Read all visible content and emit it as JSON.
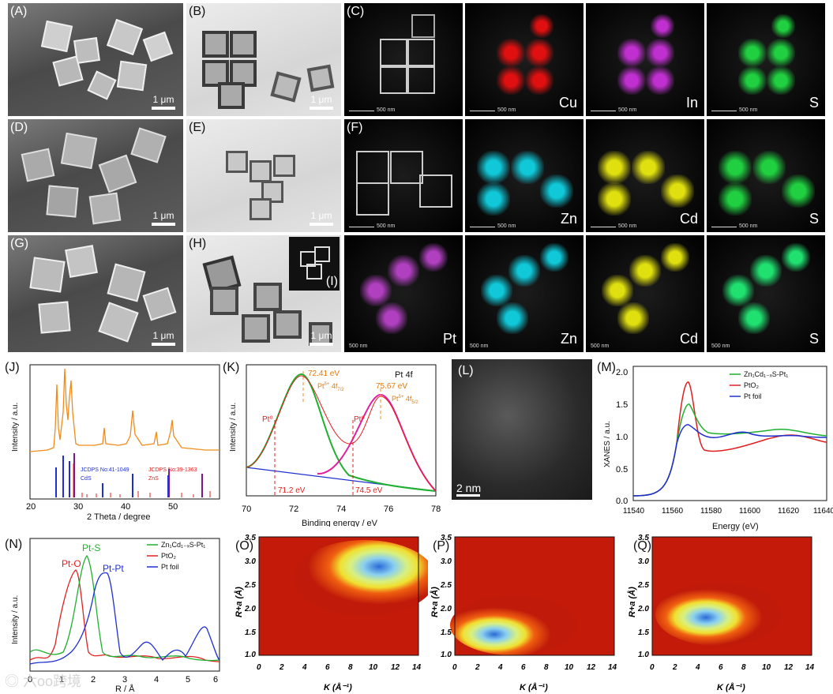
{
  "panels": {
    "A": {
      "label": "(A)",
      "scale": "1 μm"
    },
    "B": {
      "label": "(B)",
      "scale": "1 μm"
    },
    "C": {
      "label": "(C)",
      "scales": [
        "500 nm",
        "500 nm",
        "500 nm",
        "500 nm"
      ],
      "elements": [
        "Cu",
        "In",
        "S"
      ]
    },
    "D": {
      "label": "(D)",
      "scale": "1 μm"
    },
    "E": {
      "label": "(E)",
      "scale": "1 μm"
    },
    "F": {
      "label": "(F)",
      "scales": [
        "500 nm",
        "500 nm",
        "500 nm",
        "500 nm"
      ],
      "elements": [
        "Zn",
        "Cd",
        "S"
      ]
    },
    "G": {
      "label": "(G)",
      "scale": "1 μm"
    },
    "H": {
      "label": "(H)",
      "scale": "1 μm"
    },
    "I": {
      "label": "(I)"
    },
    "row3": {
      "scales": [
        "500 nm",
        "500 nm",
        "500 nm",
        "500 nm"
      ],
      "elements": [
        "Pt",
        "Zn",
        "Cd",
        "S"
      ]
    },
    "J": {
      "label": "(J)",
      "xlabel": "2 Theta / degree",
      "ylabel": "Intensity / a.u.",
      "ref1": "JCDPS No:41-1049",
      "ref1b": "CdS",
      "ref2": "JCDPS No:39-1363",
      "ref2b": "ZnS"
    },
    "K": {
      "label": "(K)",
      "xlabel": "Binding energy / eV",
      "ylabel": "Intensity / a.u.",
      "title": "Pt 4f",
      "e1": "72.41 eV",
      "e2": "75.67 eV",
      "e3": "71.2 eV",
      "e4": "74.5 eV",
      "pt0": "Pt⁰",
      "ptd1": "Pt",
      "ptd1sup": "δ+",
      "ptd1t": " 4f",
      "ptd1sub": "7/2",
      "ptd2sub": "5/2"
    },
    "L": {
      "label": "(L)",
      "scale": "2 nm"
    },
    "M": {
      "label": "(M)",
      "xlabel": "Energy (eV)",
      "ylabel": "XANES / a.u.",
      "legend": [
        "Zn₁Cd₁₋ₓS-Pt₁",
        "PtO₂",
        "Pt foil"
      ]
    },
    "N": {
      "label": "(N)",
      "xlabel": "R / Å",
      "ylabel": "Intensity / a.u.",
      "legend": [
        "Zn₁Cd₁₋ₓS-Pt₁",
        "PtO₂",
        "Pt foil"
      ],
      "peaks": [
        "Pt-O",
        "Pt-S",
        "Pt-Pt"
      ]
    },
    "O": {
      "label": "(O)",
      "xlabel": "K (Å⁻¹)",
      "ylabel": "R+a (Å)"
    },
    "P": {
      "label": "(P)",
      "xlabel": "K (Å⁻¹)",
      "ylabel": "R+a (Å)"
    },
    "Q": {
      "label": "(Q)",
      "xlabel": "K (Å⁻¹)",
      "ylabel": "R+a (Å)"
    }
  },
  "axes": {
    "J_x": [
      "20",
      "30",
      "40",
      "50"
    ],
    "K_x": [
      "70",
      "72",
      "74",
      "76",
      "78"
    ],
    "M_x": [
      "11540",
      "11560",
      "11580",
      "11600",
      "11620",
      "11640"
    ],
    "M_y": [
      "0.0",
      "0.5",
      "1.0",
      "1.5",
      "2.0"
    ],
    "N_x": [
      "0",
      "1",
      "2",
      "3",
      "4",
      "5",
      "6"
    ],
    "W_x": [
      "0",
      "2",
      "4",
      "6",
      "8",
      "10",
      "12",
      "14"
    ],
    "W_y": [
      "3.5",
      "3.0",
      "2.5",
      "2.0",
      "1.5",
      "1.0"
    ]
  },
  "watermark": "六oo跨境",
  "colors": {
    "cu": "#e01010",
    "in": "#c030d0",
    "s": "#20d040",
    "zn": "#10c8d8",
    "cd": "#e0e010",
    "pt": "#b040c0",
    "orange": "#f08c1c",
    "green": "#20b030",
    "red": "#e02020",
    "blue": "#2030d0",
    "magenta": "#e020a0"
  }
}
